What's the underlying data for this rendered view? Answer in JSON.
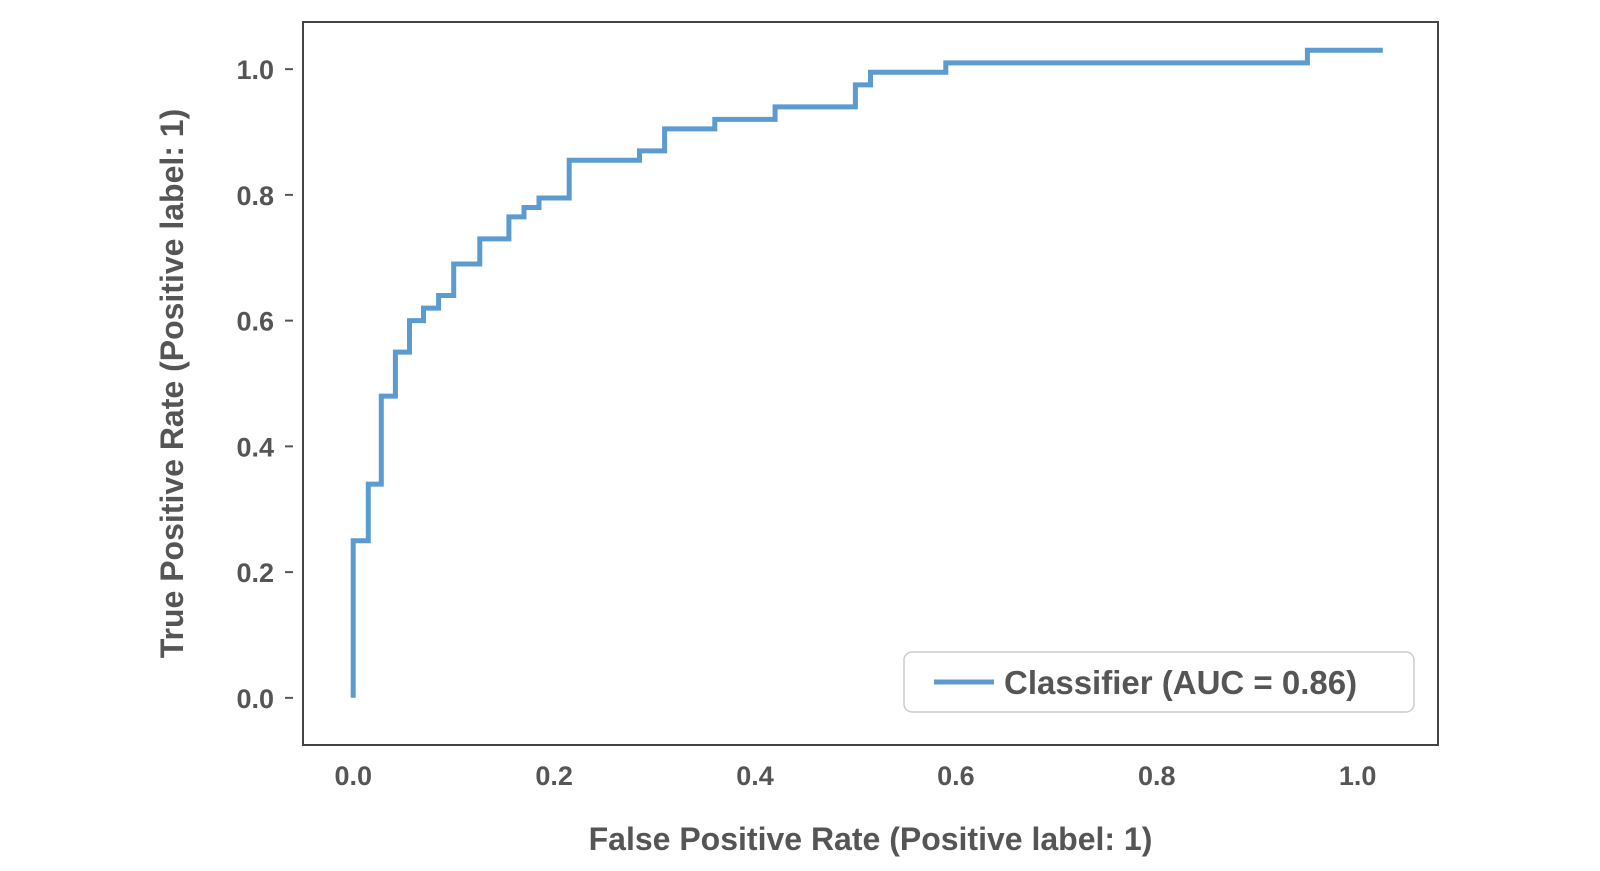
{
  "chart_data": {
    "type": "line",
    "title": "",
    "xlabel": "False Positive Rate (Positive label: 1)",
    "ylabel": "True Positive Rate (Positive label: 1)",
    "xlim": [
      -0.05,
      1.08
    ],
    "ylim": [
      -0.075,
      1.075
    ],
    "xticks": [
      0.0,
      0.2,
      0.4,
      0.6,
      0.8,
      1.0
    ],
    "xtick_labels": [
      "0.0",
      "0.2",
      "0.4",
      "0.6",
      "0.8",
      "1.0"
    ],
    "yticks": [
      0.0,
      0.2,
      0.4,
      0.6,
      0.8,
      1.0
    ],
    "ytick_labels": [
      "0.0",
      "0.2",
      "0.4",
      "0.6",
      "0.8",
      "1.0"
    ],
    "grid": false,
    "legend_position": "lower-right",
    "series": [
      {
        "name": "Classifier (AUC = 0.86)",
        "color": "#5b9bd0",
        "step": true,
        "x": [
          0.0,
          0.0,
          0.015,
          0.015,
          0.028,
          0.028,
          0.042,
          0.042,
          0.056,
          0.056,
          0.07,
          0.07,
          0.085,
          0.085,
          0.1,
          0.1,
          0.126,
          0.126,
          0.155,
          0.155,
          0.17,
          0.17,
          0.185,
          0.185,
          0.215,
          0.215,
          0.285,
          0.285,
          0.31,
          0.31,
          0.36,
          0.36,
          0.42,
          0.42,
          0.5,
          0.5,
          0.515,
          0.515,
          0.59,
          0.59,
          0.95,
          0.95,
          0.99,
          0.99,
          1.025
        ],
        "y": [
          0.0,
          0.25,
          0.25,
          0.34,
          0.34,
          0.48,
          0.48,
          0.55,
          0.55,
          0.6,
          0.6,
          0.62,
          0.62,
          0.64,
          0.64,
          0.69,
          0.69,
          0.73,
          0.73,
          0.765,
          0.765,
          0.78,
          0.78,
          0.795,
          0.795,
          0.855,
          0.855,
          0.87,
          0.87,
          0.905,
          0.905,
          0.92,
          0.92,
          0.94,
          0.94,
          0.975,
          0.975,
          0.995,
          0.995,
          1.01,
          1.01,
          1.03,
          1.03,
          1.03,
          1.03
        ]
      }
    ]
  }
}
